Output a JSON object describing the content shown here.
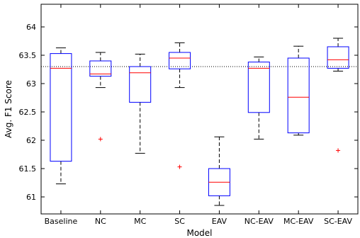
{
  "chart_data": {
    "type": "box",
    "title": "",
    "xlabel": "Model",
    "ylabel": "Avg. F1 Score",
    "ylim": [
      60.7,
      64.4
    ],
    "yticks": [
      61,
      61.5,
      62,
      62.5,
      63,
      63.5,
      64
    ],
    "ytick_labels": [
      "61",
      "61.5",
      "62",
      "62.5",
      "63",
      "63.5",
      "64"
    ],
    "grid": false,
    "reference_line": {
      "y": 63.3,
      "style": "dotted"
    },
    "categories": [
      "Baseline",
      "NC",
      "MC",
      "SC",
      "EAV",
      "NC-EAV",
      "MC-EAV",
      "SC-EAV"
    ],
    "boxes": [
      {
        "category": "Baseline",
        "whisker_low": 61.23,
        "q1": 61.63,
        "median": 63.27,
        "q3": 63.53,
        "whisker_high": 63.63,
        "outliers": []
      },
      {
        "category": "NC",
        "whisker_low": 62.93,
        "q1": 63.13,
        "median": 63.17,
        "q3": 63.4,
        "whisker_high": 63.55,
        "outliers": [
          62.02
        ]
      },
      {
        "category": "MC",
        "whisker_low": 61.77,
        "q1": 62.67,
        "median": 63.19,
        "q3": 63.3,
        "whisker_high": 63.52,
        "outliers": []
      },
      {
        "category": "SC",
        "whisker_low": 62.93,
        "q1": 63.26,
        "median": 63.45,
        "q3": 63.55,
        "whisker_high": 63.72,
        "outliers": [
          61.53
        ]
      },
      {
        "category": "EAV",
        "whisker_low": 60.85,
        "q1": 61.02,
        "median": 61.26,
        "q3": 61.5,
        "whisker_high": 62.06,
        "outliers": []
      },
      {
        "category": "NC-EAV",
        "whisker_low": 62.02,
        "q1": 62.49,
        "median": 63.27,
        "q3": 63.38,
        "whisker_high": 63.47,
        "outliers": []
      },
      {
        "category": "MC-EAV",
        "whisker_low": 62.09,
        "q1": 62.13,
        "median": 62.76,
        "q3": 63.45,
        "whisker_high": 63.66,
        "outliers": []
      },
      {
        "category": "SC-EAV",
        "whisker_low": 63.22,
        "q1": 63.27,
        "median": 63.42,
        "q3": 63.65,
        "whisker_high": 63.8,
        "outliers": [
          61.82
        ]
      }
    ],
    "colors": {
      "box": "#0000ff",
      "median": "#ff0000",
      "whisker": "#000000",
      "outlier": "#ff0000",
      "reference": "#000000"
    }
  }
}
